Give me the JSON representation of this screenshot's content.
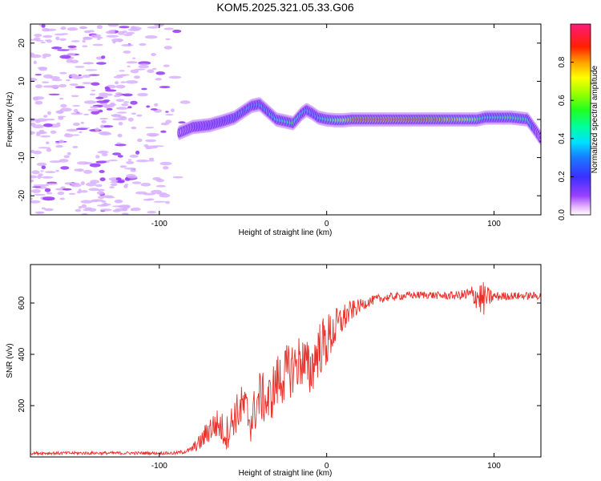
{
  "title": "KOM5.2025.321.05.33.G06",
  "colors": {
    "snr_line": "#e8302a",
    "axis": "#000000",
    "background": "#ffffff"
  },
  "chart_data": [
    {
      "type": "heatmap",
      "name": "spectrogram",
      "xlabel": "Height of straight line (km)",
      "ylabel": "Frequency (Hz)",
      "xlim": [
        -177,
        128
      ],
      "ylim": [
        -25,
        25
      ],
      "xticks": [
        -100,
        0,
        100
      ],
      "yticks": [
        -20,
        -10,
        0,
        10,
        20
      ],
      "xtick_labels": [
        "-100",
        "0",
        "100"
      ],
      "ytick_labels": [
        "-20",
        "-10",
        "0",
        "10",
        "20"
      ],
      "colorbar": {
        "label": "Normalized spectral amplitude",
        "range": [
          0,
          1
        ],
        "ticks": [
          0.0,
          0.2,
          0.4,
          0.6,
          0.8
        ],
        "tick_labels": [
          "0.0",
          "0.2",
          "0.4",
          "0.6",
          "0.8"
        ],
        "colormap": "rainbow (purple-blue-cyan-green-yellow-red-magenta)"
      },
      "ridge": {
        "x": [
          -88,
          -80,
          -70,
          -62,
          -55,
          -50,
          -45,
          -40,
          -35,
          -30,
          -25,
          -20,
          -15,
          -12,
          -8,
          -5,
          0,
          5,
          10,
          15,
          20,
          40,
          60,
          80,
          90,
          95,
          100,
          110,
          120,
          125,
          128
        ],
        "freq": [
          -3.5,
          -2,
          -1.5,
          -0.5,
          0.5,
          2,
          3.5,
          4,
          2,
          0,
          -0.5,
          -1,
          1.5,
          2.5,
          1.5,
          0.5,
          0,
          -0.2,
          -0.2,
          0,
          0,
          0,
          0,
          0,
          0,
          0.5,
          0.5,
          0.5,
          0,
          -3,
          -5
        ],
        "amp": [
          0.1,
          0.15,
          0.2,
          0.2,
          0.25,
          0.3,
          0.3,
          0.3,
          0.35,
          0.4,
          0.45,
          0.5,
          0.4,
          0.35,
          0.3,
          0.35,
          0.5,
          0.6,
          0.7,
          0.85,
          0.95,
          1.0,
          0.9,
          0.75,
          0.6,
          0.4,
          0.45,
          0.55,
          0.5,
          0.15,
          0.1
        ]
      },
      "noise_region_x": [
        -177,
        -80
      ]
    },
    {
      "type": "line",
      "name": "snr",
      "xlabel": "Height of straight line (km)",
      "ylabel": "SNR (v/v)",
      "xlim": [
        -177,
        128
      ],
      "ylim": [
        0,
        750
      ],
      "xticks": [
        -100,
        0,
        100
      ],
      "yticks": [
        200,
        400,
        600
      ],
      "xtick_labels": [
        "-100",
        "0",
        "100"
      ],
      "ytick_labels": [
        "200",
        "400",
        "600"
      ],
      "series": [
        {
          "name": "SNR",
          "x": [
            -177,
            -150,
            -120,
            -90,
            -82,
            -75,
            -70,
            -65,
            -60,
            -55,
            -50,
            -45,
            -40,
            -35,
            -30,
            -25,
            -20,
            -15,
            -10,
            -5,
            0,
            5,
            10,
            15,
            20,
            25,
            30,
            40,
            50,
            60,
            70,
            80,
            90,
            93,
            95,
            100,
            110,
            120,
            128
          ],
          "values": [
            15,
            15,
            15,
            15,
            25,
            60,
            110,
            130,
            90,
            160,
            200,
            140,
            240,
            210,
            290,
            320,
            350,
            380,
            330,
            420,
            450,
            500,
            540,
            570,
            590,
            605,
            615,
            625,
            630,
            632,
            628,
            630,
            630,
            610,
            620,
            625,
            628,
            628,
            628
          ],
          "spread": [
            6,
            6,
            6,
            6,
            10,
            35,
            55,
            60,
            70,
            75,
            90,
            90,
            100,
            100,
            110,
            110,
            110,
            110,
            110,
            110,
            110,
            80,
            60,
            40,
            25,
            20,
            18,
            15,
            15,
            15,
            15,
            18,
            55,
            80,
            50,
            20,
            15,
            15,
            15
          ]
        }
      ]
    }
  ]
}
